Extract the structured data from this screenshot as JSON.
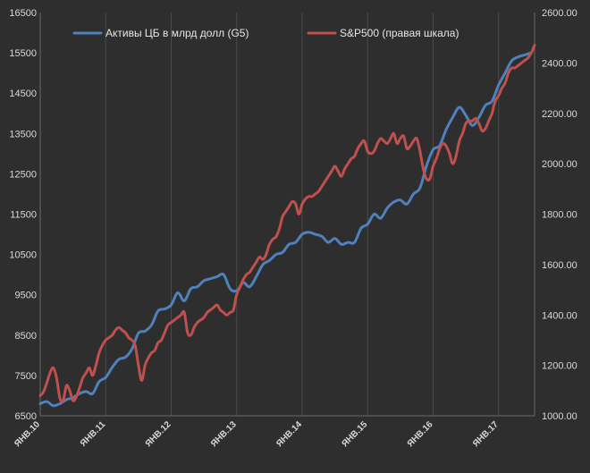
{
  "chart_data": {
    "type": "line",
    "legend_position": "top",
    "grid": "vertical",
    "x": {
      "categories": [
        "ЯНВ.10",
        "ЯНВ.11",
        "ЯНВ.12",
        "ЯНВ.13",
        "ЯНВ.14",
        "ЯНВ.15",
        "ЯНВ.16",
        "ЯНВ.17"
      ],
      "range": [
        2010.0,
        2017.55
      ]
    },
    "y_left": {
      "ylim": [
        6500,
        16500
      ],
      "ticks": [
        "6500",
        "7500",
        "8500",
        "9500",
        "10500",
        "11500",
        "12500",
        "13500",
        "14500",
        "15500",
        "16500"
      ]
    },
    "y_right": {
      "ylim": [
        1000,
        2600
      ],
      "ticks": [
        "1000.00",
        "1200.00",
        "1400.00",
        "1600.00",
        "1800.00",
        "2000.00",
        "2200.00",
        "2400.00",
        "2600.00"
      ]
    },
    "series": [
      {
        "name": "Активы ЦБ в млрд долл (G5)",
        "axis": "left",
        "color": "#4f81bd",
        "x": [
          2010.0,
          2010.1,
          2010.2,
          2010.3,
          2010.4,
          2010.5,
          2010.6,
          2010.7,
          2010.8,
          2010.9,
          2011.0,
          2011.1,
          2011.2,
          2011.3,
          2011.4,
          2011.5,
          2011.6,
          2011.7,
          2011.8,
          2011.9,
          2012.0,
          2012.1,
          2012.2,
          2012.3,
          2012.4,
          2012.5,
          2012.6,
          2012.7,
          2012.8,
          2012.9,
          2013.0,
          2013.1,
          2013.2,
          2013.3,
          2013.4,
          2013.5,
          2013.6,
          2013.7,
          2013.8,
          2013.9,
          2014.0,
          2014.1,
          2014.2,
          2014.3,
          2014.4,
          2014.5,
          2014.6,
          2014.7,
          2014.8,
          2014.9,
          2015.0,
          2015.1,
          2015.2,
          2015.3,
          2015.4,
          2015.5,
          2015.6,
          2015.7,
          2015.8,
          2015.9,
          2016.0,
          2016.1,
          2016.2,
          2016.3,
          2016.4,
          2016.5,
          2016.6,
          2016.7,
          2016.8,
          2016.9,
          2017.0,
          2017.1,
          2017.2,
          2017.3,
          2017.4,
          2017.5
        ],
        "values": [
          6800,
          6850,
          6750,
          6800,
          6900,
          6950,
          7050,
          7100,
          7050,
          7350,
          7450,
          7700,
          7900,
          7950,
          8150,
          8550,
          8600,
          8750,
          9100,
          9150,
          9250,
          9550,
          9350,
          9650,
          9700,
          9850,
          9900,
          9950,
          10000,
          9650,
          9600,
          9800,
          9700,
          9950,
          10250,
          10350,
          10500,
          10550,
          10750,
          10800,
          11000,
          11050,
          11000,
          10950,
          10800,
          10900,
          10750,
          10800,
          10800,
          11150,
          11250,
          11500,
          11400,
          11650,
          11800,
          11850,
          11750,
          12000,
          12150,
          12700,
          13100,
          13200,
          13600,
          13900,
          14150,
          13950,
          13700,
          13900,
          14200,
          14300,
          14700,
          15000,
          15300,
          15400,
          15450,
          15500
        ]
      },
      {
        "name": "S&P500 (правая шкала)",
        "axis": "right",
        "color": "#c0504d",
        "x": [
          2010.0,
          2010.05,
          2010.1,
          2010.15,
          2010.2,
          2010.25,
          2010.3,
          2010.35,
          2010.4,
          2010.45,
          2010.5,
          2010.55,
          2010.6,
          2010.65,
          2010.7,
          2010.75,
          2010.8,
          2010.85,
          2010.9,
          2010.95,
          2011.0,
          2011.05,
          2011.1,
          2011.15,
          2011.2,
          2011.25,
          2011.3,
          2011.35,
          2011.4,
          2011.45,
          2011.5,
          2011.55,
          2011.6,
          2011.65,
          2011.7,
          2011.75,
          2011.8,
          2011.85,
          2011.9,
          2011.95,
          2012.0,
          2012.05,
          2012.1,
          2012.15,
          2012.2,
          2012.25,
          2012.3,
          2012.35,
          2012.4,
          2012.45,
          2012.5,
          2012.55,
          2012.6,
          2012.65,
          2012.7,
          2012.75,
          2012.8,
          2012.85,
          2012.9,
          2012.95,
          2013.0,
          2013.05,
          2013.1,
          2013.15,
          2013.2,
          2013.25,
          2013.3,
          2013.35,
          2013.4,
          2013.45,
          2013.5,
          2013.55,
          2013.6,
          2013.65,
          2013.7,
          2013.75,
          2013.8,
          2013.85,
          2013.9,
          2013.95,
          2014.0,
          2014.05,
          2014.1,
          2014.15,
          2014.2,
          2014.25,
          2014.3,
          2014.35,
          2014.4,
          2014.45,
          2014.5,
          2014.55,
          2014.6,
          2014.65,
          2014.7,
          2014.75,
          2014.8,
          2014.85,
          2014.9,
          2014.95,
          2015.0,
          2015.05,
          2015.1,
          2015.15,
          2015.2,
          2015.25,
          2015.3,
          2015.35,
          2015.4,
          2015.45,
          2015.5,
          2015.55,
          2015.6,
          2015.65,
          2015.7,
          2015.75,
          2015.8,
          2015.85,
          2015.9,
          2015.95,
          2016.0,
          2016.05,
          2016.1,
          2016.15,
          2016.2,
          2016.25,
          2016.3,
          2016.35,
          2016.4,
          2016.45,
          2016.5,
          2016.55,
          2016.6,
          2016.65,
          2016.7,
          2016.75,
          2016.8,
          2016.85,
          2016.9,
          2016.95,
          2017.0,
          2017.05,
          2017.1,
          2017.15,
          2017.2,
          2017.25,
          2017.3,
          2017.35,
          2017.4,
          2017.45,
          2017.5,
          2017.55
        ],
        "values": [
          1080,
          1095,
          1130,
          1170,
          1190,
          1150,
          1070,
          1060,
          1120,
          1100,
          1060,
          1075,
          1110,
          1150,
          1170,
          1190,
          1160,
          1200,
          1250,
          1280,
          1300,
          1310,
          1320,
          1340,
          1350,
          1340,
          1330,
          1310,
          1300,
          1280,
          1200,
          1140,
          1200,
          1230,
          1250,
          1260,
          1290,
          1300,
          1330,
          1360,
          1370,
          1380,
          1390,
          1400,
          1410,
          1330,
          1320,
          1350,
          1370,
          1380,
          1390,
          1410,
          1420,
          1430,
          1440,
          1420,
          1410,
          1400,
          1410,
          1420,
          1480,
          1510,
          1540,
          1560,
          1570,
          1590,
          1610,
          1630,
          1620,
          1640,
          1680,
          1700,
          1710,
          1740,
          1790,
          1810,
          1830,
          1850,
          1840,
          1800,
          1840,
          1860,
          1870,
          1870,
          1880,
          1890,
          1910,
          1930,
          1950,
          1970,
          1990,
          1970,
          1950,
          1980,
          2000,
          2020,
          2030,
          2060,
          2080,
          2090,
          2050,
          2040,
          2050,
          2080,
          2100,
          2090,
          2080,
          2100,
          2120,
          2080,
          2100,
          2110,
          2060,
          2070,
          2090,
          2100,
          2050,
          1980,
          1940,
          1940,
          1990,
          2020,
          2060,
          2080,
          2070,
          2040,
          2000,
          2030,
          2090,
          2120,
          2160,
          2170,
          2170,
          2180,
          2160,
          2130,
          2140,
          2170,
          2200,
          2250,
          2270,
          2300,
          2320,
          2360,
          2380,
          2380,
          2390,
          2400,
          2410,
          2420,
          2440,
          2470
        ]
      }
    ]
  }
}
